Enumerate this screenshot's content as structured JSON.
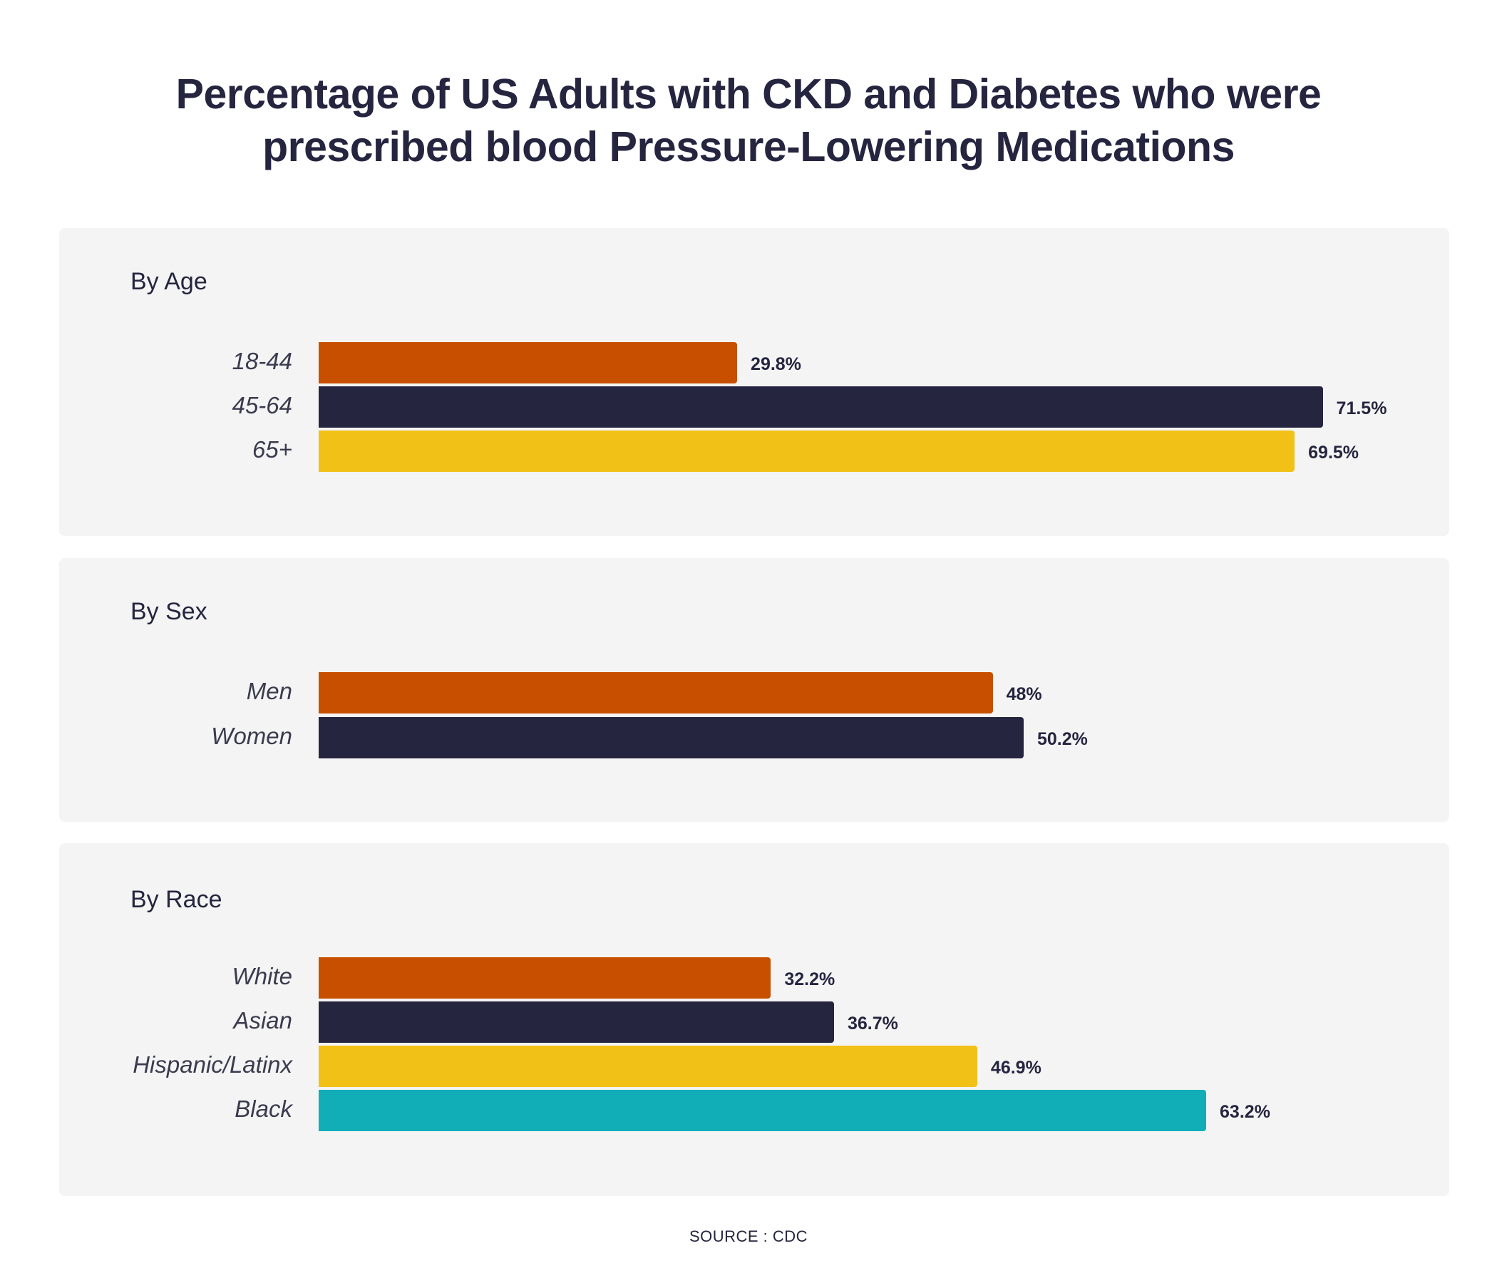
{
  "title_lines": [
    "Percentage of US Adults with CKD and Diabetes who were",
    "prescribed blood Pressure-Lowering Medications"
  ],
  "source": "SOURCE : CDC",
  "colors": {
    "orange": "#c84f00",
    "navy": "#252540",
    "yellow": "#f2c118",
    "teal": "#12aeb8"
  },
  "chart_data": [
    {
      "type": "bar",
      "orientation": "horizontal",
      "title": "By Age",
      "categories": [
        "18-44",
        "45-64",
        "65+"
      ],
      "values": [
        29.8,
        71.5,
        69.5
      ],
      "labels": [
        "29.8%",
        "71.5%",
        "69.5%"
      ],
      "colors": [
        "#c84f00",
        "#252540",
        "#f2c118"
      ],
      "xlim": [
        0,
        100
      ]
    },
    {
      "type": "bar",
      "orientation": "horizontal",
      "title": "By Sex",
      "categories": [
        "Men",
        "Women"
      ],
      "values": [
        48,
        50.2
      ],
      "labels": [
        "48%",
        "50.2%"
      ],
      "colors": [
        "#c84f00",
        "#252540"
      ],
      "xlim": [
        0,
        100
      ]
    },
    {
      "type": "bar",
      "orientation": "horizontal",
      "title": "By Race",
      "categories": [
        "White",
        "Asian",
        "Hispanic/Latinx",
        "Black"
      ],
      "values": [
        32.2,
        36.7,
        46.9,
        63.2
      ],
      "labels": [
        "32.2%",
        "36.7%",
        "46.9%",
        "63.2%"
      ],
      "colors": [
        "#c84f00",
        "#252540",
        "#f2c118",
        "#12aeb8"
      ],
      "xlim": [
        0,
        100
      ]
    }
  ]
}
